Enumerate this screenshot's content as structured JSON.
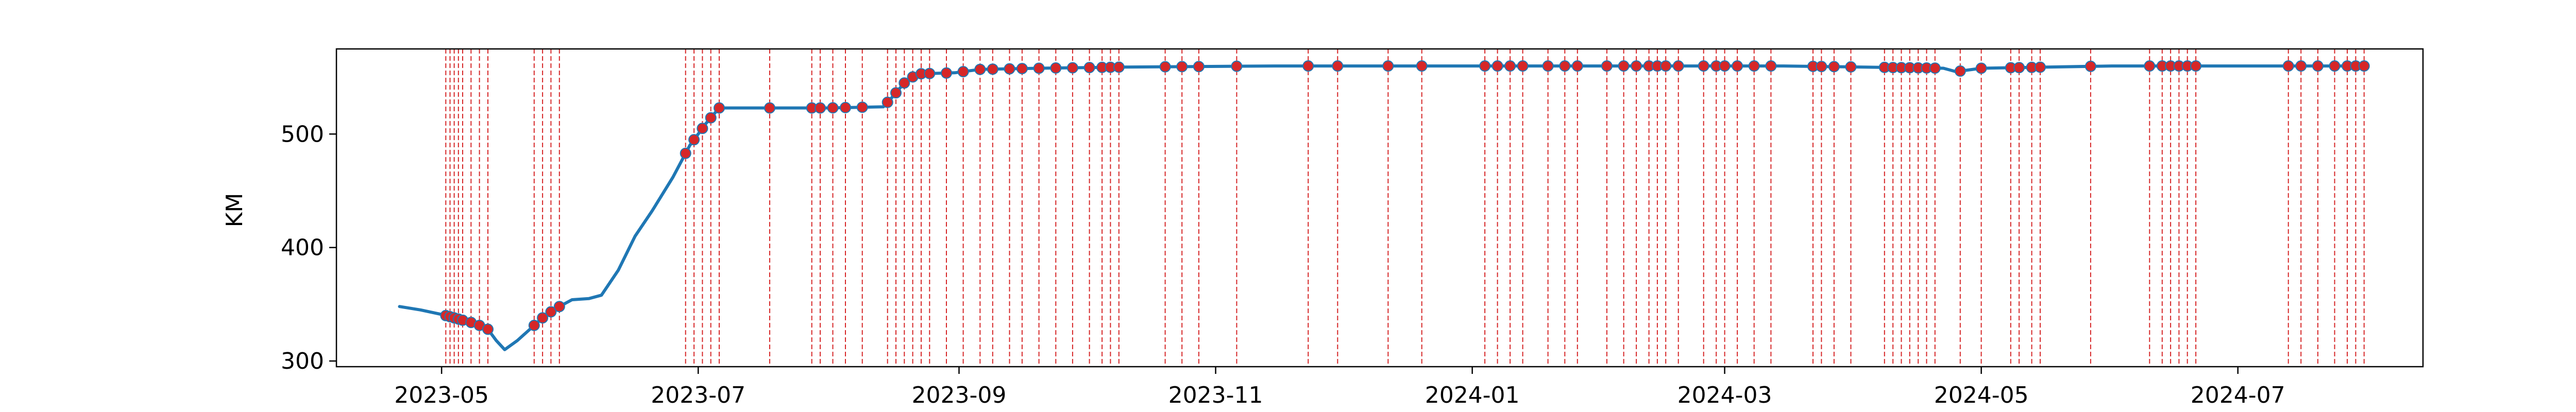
{
  "chart_data": {
    "type": "line",
    "title": "",
    "xlabel": "",
    "ylabel": "KM",
    "x_range": [
      "2023-04-06",
      "2024-08-14"
    ],
    "ylim": [
      295,
      575
    ],
    "x_ticks": [
      "2023-05-01",
      "2023-07-01",
      "2023-09-01",
      "2023-11-01",
      "2024-01-01",
      "2024-03-01",
      "2024-05-01",
      "2024-07-01"
    ],
    "x_tick_labels": [
      "2023-05",
      "2023-07",
      "2023-09",
      "2023-11",
      "2024-01",
      "2024-03",
      "2024-05",
      "2024-07"
    ],
    "y_ticks": [
      300,
      400,
      500
    ],
    "grid": false,
    "legend": "none",
    "colors": {
      "line": "#1f77b4",
      "event": "#d62728"
    },
    "series": [
      {
        "points": [
          [
            "2023-04-21",
            348
          ],
          [
            "2023-04-26",
            345
          ],
          [
            "2023-05-01",
            341
          ],
          [
            "2023-05-05",
            337
          ],
          [
            "2023-05-09",
            333
          ],
          [
            "2023-05-12",
            328
          ],
          [
            "2023-05-14",
            318
          ],
          [
            "2023-05-16",
            310
          ],
          [
            "2023-05-19",
            318
          ],
          [
            "2023-05-22",
            328
          ],
          [
            "2023-05-25",
            338
          ],
          [
            "2023-05-28",
            346
          ],
          [
            "2023-06-01",
            354
          ],
          [
            "2023-06-05",
            355
          ],
          [
            "2023-06-08",
            358
          ],
          [
            "2023-06-12",
            380
          ],
          [
            "2023-06-16",
            410
          ],
          [
            "2023-06-20",
            432
          ],
          [
            "2023-06-25",
            462
          ],
          [
            "2023-06-29",
            490
          ],
          [
            "2023-07-03",
            510
          ],
          [
            "2023-07-06",
            523
          ],
          [
            "2023-07-15",
            523
          ],
          [
            "2023-08-01",
            523
          ],
          [
            "2023-08-14",
            524
          ],
          [
            "2023-08-16",
            532
          ],
          [
            "2023-08-19",
            545
          ],
          [
            "2023-08-22",
            553
          ],
          [
            "2023-08-31",
            554
          ],
          [
            "2023-09-06",
            557
          ],
          [
            "2023-09-20",
            558
          ],
          [
            "2023-10-10",
            559
          ],
          [
            "2023-11-15",
            560
          ],
          [
            "2024-01-15",
            560
          ],
          [
            "2024-03-15",
            560
          ],
          [
            "2024-04-22",
            558
          ],
          [
            "2024-04-25",
            555
          ],
          [
            "2024-05-01",
            558
          ],
          [
            "2024-06-01",
            560
          ],
          [
            "2024-07-15",
            560
          ],
          [
            "2024-07-31",
            560
          ]
        ]
      }
    ],
    "event_dates": [
      "2023-05-02",
      "2023-05-03",
      "2023-05-04",
      "2023-05-05",
      "2023-05-06",
      "2023-05-08",
      "2023-05-10",
      "2023-05-12",
      "2023-05-23",
      "2023-05-25",
      "2023-05-27",
      "2023-05-29",
      "2023-06-28",
      "2023-06-30",
      "2023-07-02",
      "2023-07-04",
      "2023-07-06",
      "2023-07-18",
      "2023-07-28",
      "2023-07-30",
      "2023-08-02",
      "2023-08-05",
      "2023-08-09",
      "2023-08-15",
      "2023-08-17",
      "2023-08-19",
      "2023-08-21",
      "2023-08-23",
      "2023-08-25",
      "2023-08-29",
      "2023-09-02",
      "2023-09-06",
      "2023-09-09",
      "2023-09-13",
      "2023-09-16",
      "2023-09-20",
      "2023-09-24",
      "2023-09-28",
      "2023-10-02",
      "2023-10-05",
      "2023-10-07",
      "2023-10-09",
      "2023-10-20",
      "2023-10-24",
      "2023-10-28",
      "2023-11-06",
      "2023-11-23",
      "2023-11-30",
      "2023-12-12",
      "2023-12-20",
      "2024-01-04",
      "2024-01-07",
      "2024-01-10",
      "2024-01-13",
      "2024-01-19",
      "2024-01-23",
      "2024-01-26",
      "2024-02-02",
      "2024-02-06",
      "2024-02-09",
      "2024-02-12",
      "2024-02-14",
      "2024-02-16",
      "2024-02-19",
      "2024-02-25",
      "2024-02-28",
      "2024-03-01",
      "2024-03-04",
      "2024-03-08",
      "2024-03-12",
      "2024-03-22",
      "2024-03-24",
      "2024-03-27",
      "2024-03-31",
      "2024-04-08",
      "2024-04-10",
      "2024-04-12",
      "2024-04-14",
      "2024-04-16",
      "2024-04-18",
      "2024-04-20",
      "2024-04-26",
      "2024-05-01",
      "2024-05-08",
      "2024-05-10",
      "2024-05-13",
      "2024-05-15",
      "2024-05-27",
      "2024-06-10",
      "2024-06-13",
      "2024-06-15",
      "2024-06-17",
      "2024-06-19",
      "2024-06-21",
      "2024-07-13",
      "2024-07-16",
      "2024-07-20",
      "2024-07-24",
      "2024-07-27",
      "2024-07-29",
      "2024-07-31"
    ]
  }
}
